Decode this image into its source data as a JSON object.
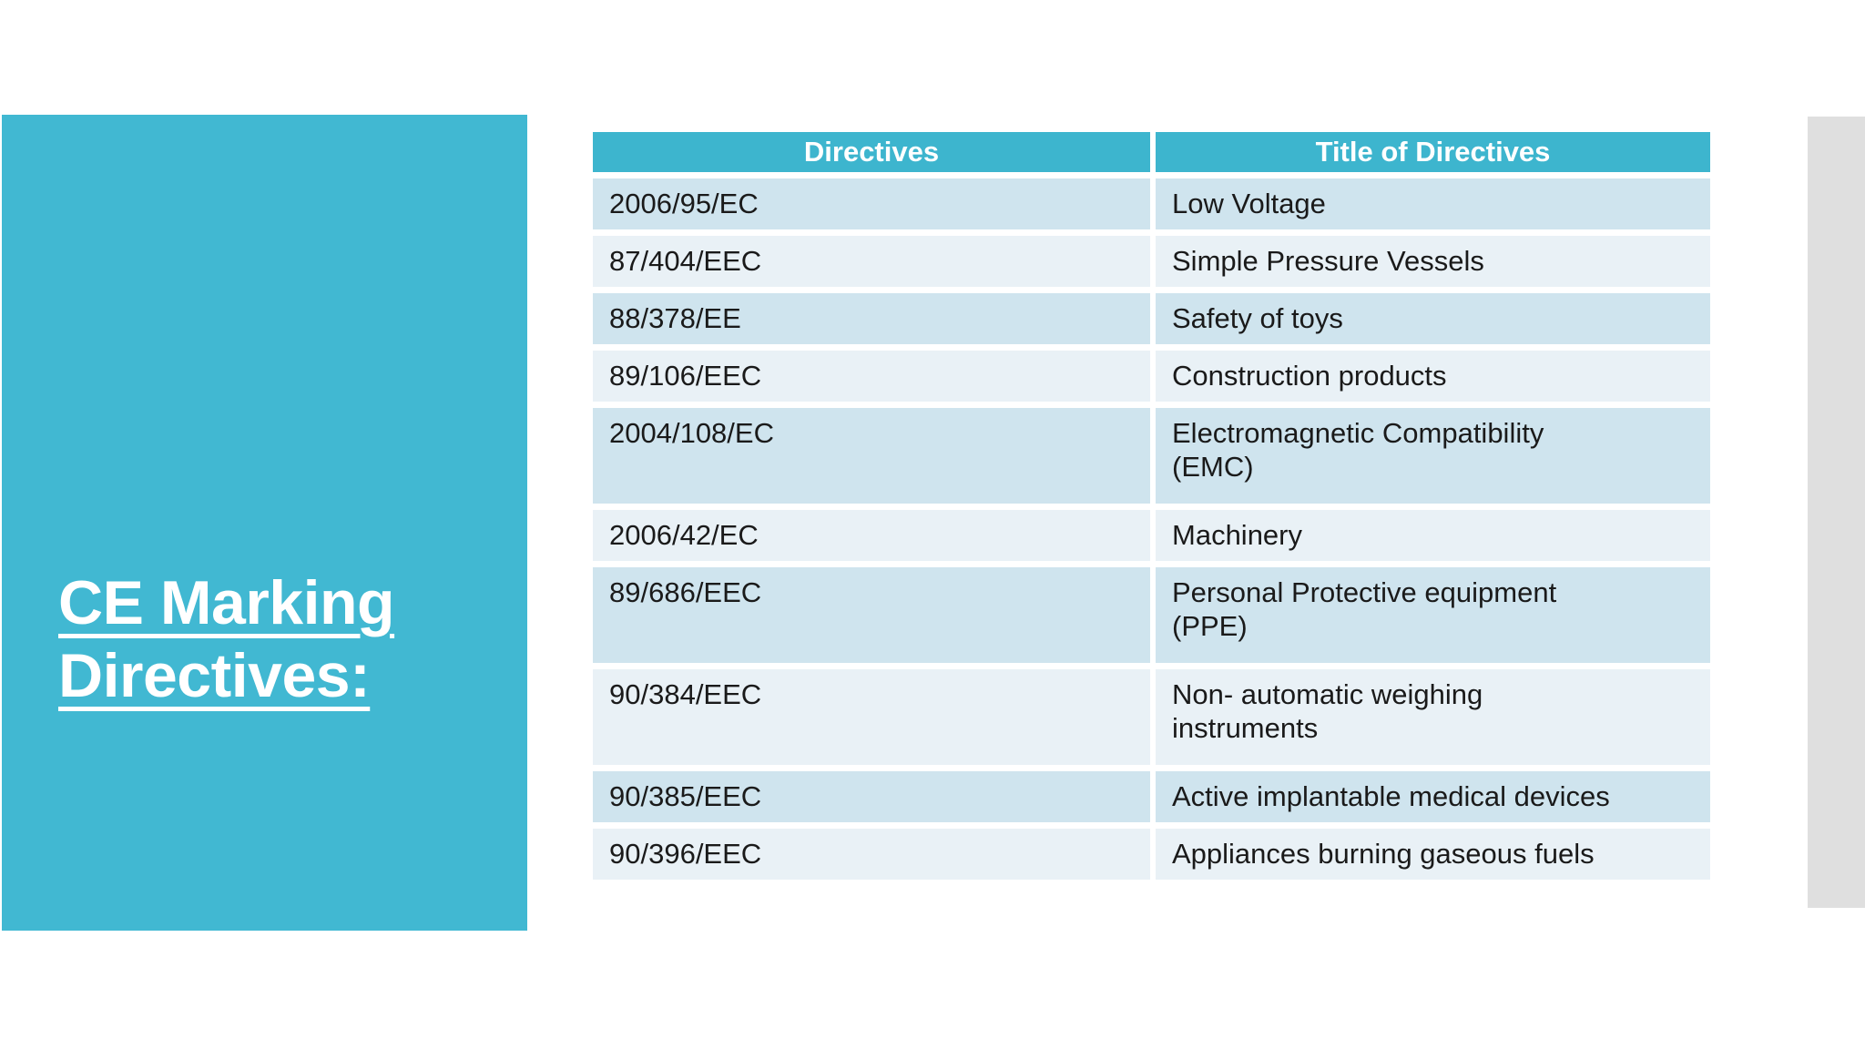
{
  "colors": {
    "panel-teal": "#41b8d2",
    "header-teal": "#3db5ce",
    "row-dark": "#cfe4ee",
    "row-light": "#e9f1f6",
    "side-gray": "#dfdfdf",
    "body-text": "#1a1a1a",
    "text-white": "#ffffff"
  },
  "title": {
    "text": "CE Marking\nDirectives:"
  },
  "table": {
    "columns": [
      "Directives",
      "Title of Directives"
    ],
    "rows": [
      {
        "directive": "2006/95/EC",
        "title": "Low Voltage"
      },
      {
        "directive": "87/404/EEC",
        "title": "Simple Pressure Vessels"
      },
      {
        "directive": "88/378/EE",
        "title": "Safety of toys"
      },
      {
        "directive": "89/106/EEC",
        "title": "Construction products"
      },
      {
        "directive": "2004/108/EC",
        "title": "Electromagnetic Compatibility\n(EMC)"
      },
      {
        "directive": "2006/42/EC",
        "title": "Machinery"
      },
      {
        "directive": "89/686/EEC",
        "title": "Personal Protective equipment\n(PPE)"
      },
      {
        "directive": "90/384/EEC",
        "title": "Non- automatic weighing\ninstruments"
      },
      {
        "directive": "90/385/EEC",
        "title": "Active implantable medical devices"
      },
      {
        "directive": "90/396/EEC",
        "title": "Appliances burning gaseous fuels"
      }
    ]
  }
}
